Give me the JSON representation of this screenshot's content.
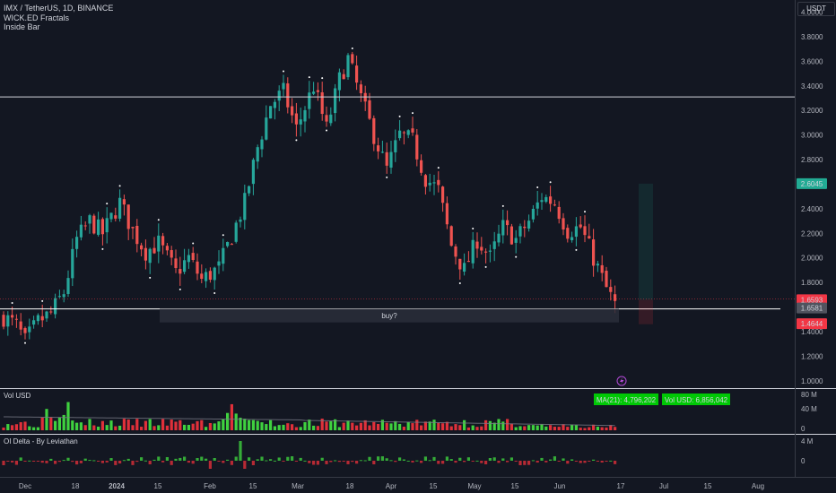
{
  "header": {
    "symbol": "IMX / TetherUS, 1D, BINANCE",
    "indicators": [
      "WICK.ED Fractals",
      "Inside Bar"
    ],
    "currency": "USDT"
  },
  "colors": {
    "background": "#131722",
    "up": "#26a69a",
    "down": "#ef5350",
    "volume_up": "#3fd13f",
    "volume_down": "#e0303a",
    "accent_green": "#22ab94",
    "alert_red": "#f23645"
  },
  "chart_data": {
    "type": "candlestick",
    "price_axis": {
      "ticks": [
        "4.0000",
        "3.8000",
        "3.6000",
        "3.4000",
        "3.2000",
        "3.0000",
        "2.8000",
        "2.6000",
        "2.4000",
        "2.2000",
        "2.0000",
        "1.8000",
        "1.6000",
        "1.4000",
        "1.2000",
        "1.0000"
      ],
      "range": [
        0.94,
        4.07
      ]
    },
    "time_axis": {
      "labels": [
        "Dec",
        "18",
        "2024",
        "15",
        "Feb",
        "15",
        "Mar",
        "18",
        "Apr",
        "15",
        "May",
        "15",
        "Jun",
        "17",
        "Jul",
        "15",
        "Aug"
      ],
      "bold_label": "2024"
    },
    "price_labels": [
      {
        "text": "2.6045",
        "value": 2.6045,
        "style": "green"
      },
      {
        "text": "1.6593",
        "value": 1.6593,
        "style": "red"
      },
      {
        "text": "1.6581",
        "value": 1.6581,
        "style": "gray"
      },
      {
        "text": "1.4644",
        "value": 1.4644,
        "style": "red"
      }
    ],
    "horizontal_lines": [
      3.31,
      1.585
    ],
    "annotation": {
      "text": "buy?",
      "y_top": 1.585,
      "y_bottom": 1.475
    },
    "anchors": [
      [
        0,
        1.52
      ],
      [
        3,
        1.45
      ],
      [
        5,
        1.32
      ],
      [
        8,
        1.48
      ],
      [
        11,
        1.55
      ],
      [
        14,
        1.72
      ],
      [
        17,
        2.15
      ],
      [
        20,
        2.3
      ],
      [
        23,
        2.2
      ],
      [
        27,
        2.45
      ],
      [
        30,
        2.22
      ],
      [
        33,
        2.05
      ],
      [
        36,
        2.12
      ],
      [
        40,
        1.88
      ],
      [
        43,
        2.0
      ],
      [
        46,
        1.82
      ],
      [
        50,
        1.92
      ],
      [
        53,
        2.18
      ],
      [
        56,
        2.45
      ],
      [
        59,
        2.9
      ],
      [
        62,
        3.25
      ],
      [
        65,
        3.35
      ],
      [
        68,
        3.05
      ],
      [
        72,
        3.4
      ],
      [
        75,
        3.05
      ],
      [
        78,
        3.45
      ],
      [
        80,
        3.62
      ],
      [
        83,
        3.3
      ],
      [
        86,
        3.0
      ],
      [
        89,
        2.72
      ],
      [
        92,
        3.0
      ],
      [
        95,
        2.95
      ],
      [
        98,
        2.65
      ],
      [
        101,
        2.55
      ],
      [
        104,
        2.1
      ],
      [
        107,
        1.9
      ],
      [
        110,
        2.15
      ],
      [
        113,
        2.0
      ],
      [
        116,
        2.25
      ],
      [
        119,
        2.15
      ],
      [
        122,
        2.3
      ],
      [
        125,
        2.5
      ],
      [
        128,
        2.45
      ],
      [
        131,
        2.22
      ],
      [
        134,
        2.25
      ],
      [
        137,
        2.0
      ],
      [
        140,
        1.75
      ],
      [
        142,
        1.62
      ]
    ],
    "ma_label": "MA(21): 4,796,202",
    "vol_label": "Vol USD: 6,856,042",
    "volume_axis": [
      "80 M",
      "40 M",
      "0"
    ],
    "oi_axis": [
      "4 M",
      "0"
    ]
  },
  "panes": {
    "volume_title": "Vol USD",
    "oi_title": "OI Delta - By Leviathan"
  }
}
